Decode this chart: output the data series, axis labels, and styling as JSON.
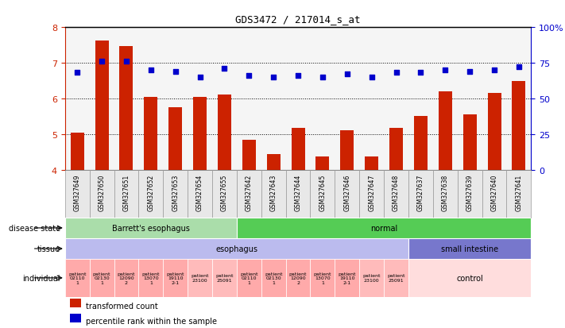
{
  "title": "GDS3472 / 217014_s_at",
  "samples": [
    "GSM327649",
    "GSM327650",
    "GSM327651",
    "GSM327652",
    "GSM327653",
    "GSM327654",
    "GSM327655",
    "GSM327642",
    "GSM327643",
    "GSM327644",
    "GSM327645",
    "GSM327646",
    "GSM327647",
    "GSM327648",
    "GSM327637",
    "GSM327638",
    "GSM327639",
    "GSM327640",
    "GSM327641"
  ],
  "bar_values": [
    5.05,
    7.62,
    7.47,
    6.05,
    5.75,
    6.05,
    6.1,
    4.83,
    4.45,
    5.17,
    4.38,
    5.1,
    4.37,
    5.17,
    5.5,
    6.2,
    5.55,
    6.15,
    6.48
  ],
  "dot_values": [
    68,
    76,
    76,
    70,
    69,
    65,
    71,
    66,
    65,
    66,
    65,
    67,
    65,
    68,
    68,
    70,
    69,
    70,
    72
  ],
  "ylim_left": [
    4,
    8
  ],
  "ylim_right": [
    0,
    100
  ],
  "yticks_left": [
    4,
    5,
    6,
    7,
    8
  ],
  "yticks_right": [
    0,
    25,
    50,
    75,
    100
  ],
  "bar_color": "#cc2200",
  "dot_color": "#0000cc",
  "disease_state_labels": [
    {
      "label": "Barrett's esophagus",
      "start": 0,
      "end": 7,
      "color": "#aaddaa"
    },
    {
      "label": "normal",
      "start": 7,
      "end": 19,
      "color": "#55cc55"
    }
  ],
  "tissue_labels": [
    {
      "label": "esophagus",
      "start": 0,
      "end": 14,
      "color": "#bbbbee"
    },
    {
      "label": "small intestine",
      "start": 14,
      "end": 19,
      "color": "#7777cc"
    }
  ],
  "individual_cells": [
    {
      "label": "patient\n02110\n1",
      "start": 0,
      "end": 1,
      "color": "#ffaaaa"
    },
    {
      "label": "patient\n02130\n1",
      "start": 1,
      "end": 2,
      "color": "#ffaaaa"
    },
    {
      "label": "patient\n12090\n2",
      "start": 2,
      "end": 3,
      "color": "#ffaaaa"
    },
    {
      "label": "patient\n13070\n1",
      "start": 3,
      "end": 4,
      "color": "#ffaaaa"
    },
    {
      "label": "patient\n19110\n2-1",
      "start": 4,
      "end": 5,
      "color": "#ffaaaa"
    },
    {
      "label": "patient\n23100",
      "start": 5,
      "end": 6,
      "color": "#ffbbbb"
    },
    {
      "label": "patient\n25091",
      "start": 6,
      "end": 7,
      "color": "#ffbbbb"
    },
    {
      "label": "patient\n02110\n1",
      "start": 7,
      "end": 8,
      "color": "#ffaaaa"
    },
    {
      "label": "patient\n02130\n1",
      "start": 8,
      "end": 9,
      "color": "#ffaaaa"
    },
    {
      "label": "patient\n12090\n2",
      "start": 9,
      "end": 10,
      "color": "#ffaaaa"
    },
    {
      "label": "patient\n13070\n1",
      "start": 10,
      "end": 11,
      "color": "#ffaaaa"
    },
    {
      "label": "patient\n19110\n2-1",
      "start": 11,
      "end": 12,
      "color": "#ffaaaa"
    },
    {
      "label": "patient\n23100",
      "start": 12,
      "end": 13,
      "color": "#ffbbbb"
    },
    {
      "label": "patient\n25091",
      "start": 13,
      "end": 14,
      "color": "#ffbbbb"
    },
    {
      "label": "control",
      "start": 14,
      "end": 19,
      "color": "#ffdddd"
    }
  ],
  "legend_items": [
    {
      "color": "#cc2200",
      "label": "transformed count"
    },
    {
      "color": "#0000cc",
      "label": "percentile rank within the sample"
    }
  ],
  "n_samples": 19
}
